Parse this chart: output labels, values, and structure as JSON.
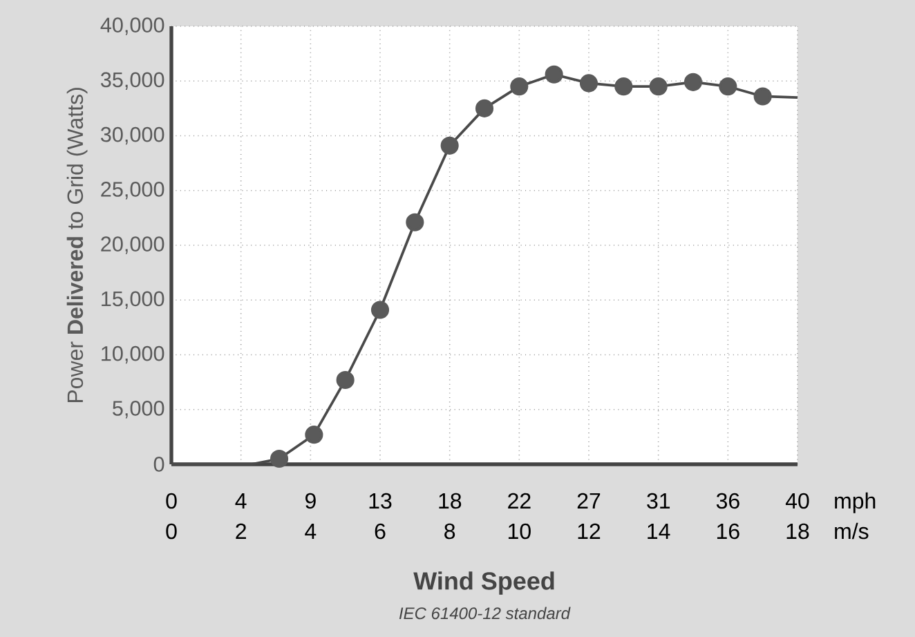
{
  "chart_data": {
    "type": "line",
    "xlabel": "Wind Speed",
    "ylabel": "Power **Delivered** to Grid (Watts)",
    "x2label": "mph",
    "annotations": [
      "m/s",
      "IEC 61400-12 standard"
    ],
    "xlim": [
      0,
      18
    ],
    "xticks": [
      0,
      2,
      4,
      6,
      8,
      10,
      12,
      14,
      16,
      18
    ],
    "x2lim": [
      0,
      40.26
    ],
    "x2ticks": [
      0,
      {
        "value": 4.47,
        "label": "4"
      },
      {
        "value": 8.95,
        "label": "9"
      },
      {
        "value": 13.42,
        "label": "13"
      },
      {
        "value": 17.9,
        "label": "18"
      },
      {
        "value": 22.37,
        "label": "22"
      },
      {
        "value": 26.84,
        "label": "27"
      },
      {
        "value": 31.32,
        "label": "31"
      },
      {
        "value": 35.79,
        "label": "36"
      },
      {
        "value": 40.26,
        "label": "40"
      }
    ],
    "ylim": [
      0,
      40000
    ],
    "yticks": [
      {
        "value": 0,
        "label": "0"
      },
      {
        "value": 5000,
        "label": "5,000"
      },
      {
        "value": 10000,
        "label": "10,000"
      },
      {
        "value": 15000,
        "label": "15,000"
      },
      {
        "value": 20000,
        "label": "20,000"
      },
      {
        "value": 25000,
        "label": "25,000"
      },
      {
        "value": 30000,
        "label": "30,000"
      },
      {
        "value": 35000,
        "label": "35,000"
      },
      {
        "value": 40000,
        "label": "40,000"
      }
    ],
    "grid": true,
    "line_style": "solid",
    "series": [
      {
        "marker": "none",
        "color": "#4a4a4a",
        "x": [
          0,
          2.3,
          3.1,
          4.1,
          5,
          6,
          7,
          8,
          9,
          10,
          11,
          12,
          13,
          14,
          15,
          16,
          17,
          18
        ],
        "values": [
          0,
          0,
          500,
          2700,
          7700,
          14100,
          22100,
          29100,
          32500,
          34500,
          35600,
          34800,
          34500,
          34500,
          34900,
          34500,
          33600,
          33500
        ]
      },
      {
        "type": "scatter",
        "marker": "circle",
        "color": "#5a5a5a",
        "x": [
          3.1,
          4.1,
          5,
          6,
          7,
          8,
          9,
          10,
          11,
          12,
          13,
          14,
          15,
          16,
          17
        ],
        "values": [
          500,
          2700,
          7700,
          14100,
          22100,
          29100,
          32500,
          34500,
          35600,
          34800,
          34500,
          34500,
          34900,
          34500,
          33600
        ]
      }
    ]
  }
}
